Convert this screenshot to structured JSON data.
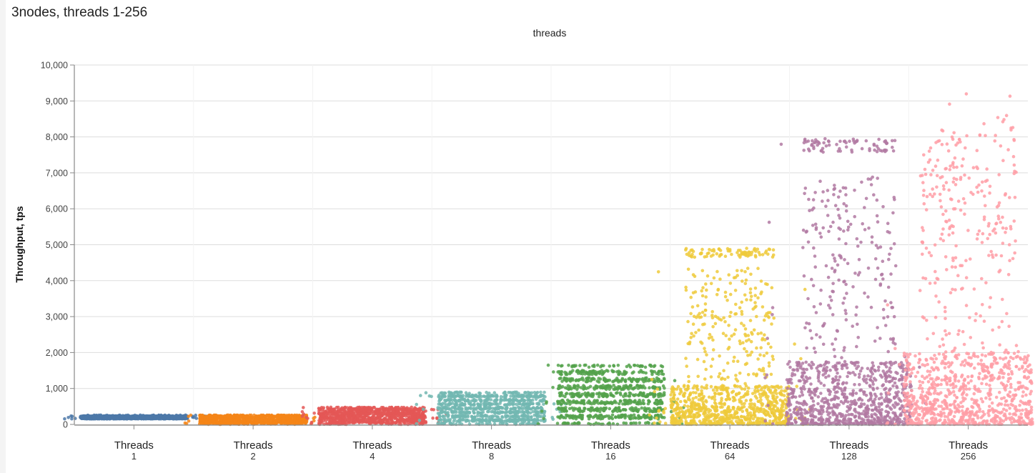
{
  "panel": {
    "title": "3nodes, threads 1-256",
    "facet_label": "threads"
  },
  "chart_data": {
    "type": "scatter",
    "subtype": "jitter strip plot",
    "title": "3nodes, threads 1-256",
    "column_facet_title": "threads",
    "xlabel": "",
    "ylabel": "Throughput, tps",
    "ylim": [
      0,
      10000
    ],
    "yticks": [
      0,
      1000,
      2000,
      3000,
      4000,
      5000,
      6000,
      7000,
      8000,
      9000,
      10000
    ],
    "ytick_labels": [
      "0",
      "1,000",
      "2,000",
      "3,000",
      "4,000",
      "5,000",
      "6,000",
      "7,000",
      "8,000",
      "9,000",
      "10,000"
    ],
    "grid": true,
    "legend": "none",
    "categories": [
      "Threads 1",
      "Threads 2",
      "Threads 4",
      "Threads 8",
      "Threads 16",
      "Threads 64",
      "Threads 128",
      "Threads 256"
    ],
    "series": [
      {
        "name": "Threads 1",
        "line1": "Threads",
        "line2": "1",
        "color": "#4c78a8",
        "min": 150,
        "max": 260,
        "typical": 210,
        "approx_max": 250,
        "count": 900,
        "width": 150,
        "shape": "band"
      },
      {
        "name": "Threads 2",
        "line1": "Threads",
        "line2": "2",
        "color": "#f58518",
        "min": 0,
        "max": 260,
        "typical": 120,
        "approx_max": 250,
        "count": 900,
        "width": 150,
        "shape": "band"
      },
      {
        "name": "Threads 4",
        "line1": "Threads",
        "line2": "4",
        "color": "#e45756",
        "min": 0,
        "max": 480,
        "typical": 250,
        "approx_max": 470,
        "count": 900,
        "width": 150,
        "shape": "band"
      },
      {
        "name": "Threads 8",
        "line1": "Threads",
        "line2": "8",
        "color": "#72b7b2",
        "min": 0,
        "max": 900,
        "typical": 450,
        "approx_max": 880,
        "count": 900,
        "width": 150,
        "shape": "band"
      },
      {
        "name": "Threads 16",
        "line1": "Threads",
        "line2": "16",
        "color": "#54a24b",
        "min": 0,
        "max": 1650,
        "typical": 700,
        "approx_max": 1640,
        "count": 900,
        "width": 150,
        "shape": "band"
      },
      {
        "name": "Threads 64",
        "line1": "Threads",
        "line2": "64",
        "color": "#eeca3b",
        "min": 0,
        "max": 4950,
        "typical": 700,
        "approx_max": 4950,
        "count": 1100,
        "width": 165,
        "shape": "skew",
        "top_cluster": 4800
      },
      {
        "name": "Threads 128",
        "line1": "Threads",
        "line2": "128",
        "color": "#b279a2",
        "min": 0,
        "max": 7950,
        "typical": 600,
        "approx_max": 7950,
        "count": 1100,
        "width": 175,
        "shape": "skew",
        "top_cluster": 7800
      },
      {
        "name": "Threads 256",
        "line1": "Threads",
        "line2": "256",
        "color": "#ff9da6",
        "min": 0,
        "max": 9200,
        "typical": 500,
        "approx_max": 9200,
        "count": 1100,
        "width": 180,
        "shape": "skew",
        "top_cluster": 0
      }
    ]
  }
}
